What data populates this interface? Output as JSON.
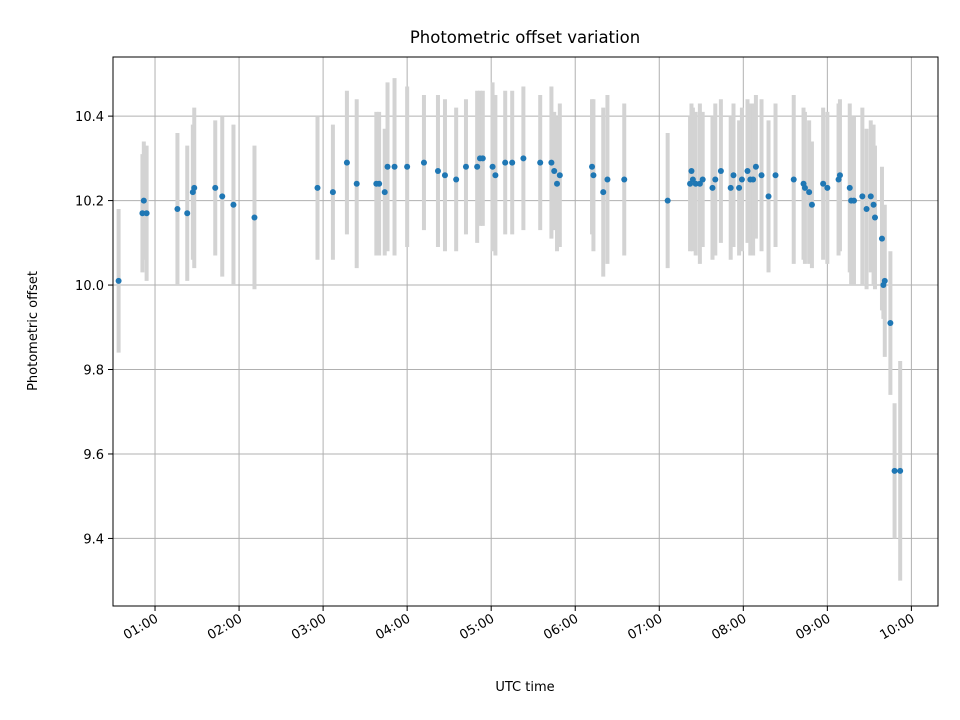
{
  "chart_data": {
    "type": "scatter",
    "title": "Photometric offset variation",
    "xlabel": "UTC time",
    "ylabel": "Photometric offset",
    "xlim": [
      "00:30",
      "10:19"
    ],
    "ylim": [
      9.24,
      10.54
    ],
    "xticks": [
      "01:00",
      "02:00",
      "03:00",
      "04:00",
      "05:00",
      "06:00",
      "07:00",
      "08:00",
      "09:00",
      "10:00"
    ],
    "yticks": [
      9.4,
      9.6,
      9.8,
      10.0,
      10.2,
      10.4
    ],
    "yticklabels": [
      "9.4",
      "9.6",
      "9.8",
      "10.0",
      "10.2",
      "10.4"
    ],
    "grid": true,
    "colors": {
      "points": "#1f77b4",
      "errorbars": "#d3d3d3",
      "grid": "#b0b0b0"
    },
    "series": [
      {
        "x": [
          "00:34",
          "00:51",
          "00:52",
          "00:54",
          "01:16",
          "01:23",
          "01:27",
          "01:28",
          "01:43",
          "01:48",
          "01:56",
          "02:11",
          "02:56",
          "03:07",
          "03:17",
          "03:24",
          "03:38",
          "03:40",
          "03:44",
          "03:46",
          "03:51",
          "04:00",
          "04:12",
          "04:22",
          "04:27",
          "04:35",
          "04:42",
          "04:50",
          "04:52",
          "04:54",
          "05:01",
          "05:03",
          "05:10",
          "05:15",
          "05:23",
          "05:35",
          "05:43",
          "05:45",
          "05:47",
          "05:49",
          "06:12",
          "06:13",
          "06:20",
          "06:23",
          "06:35",
          "07:06",
          "07:22",
          "07:23",
          "07:24",
          "07:26",
          "07:29",
          "07:31",
          "07:38",
          "07:40",
          "07:44",
          "07:51",
          "07:53",
          "07:57",
          "07:59",
          "08:03",
          "08:05",
          "08:07",
          "08:09",
          "08:13",
          "08:18",
          "08:23",
          "08:36",
          "08:43",
          "08:44",
          "08:47",
          "08:49",
          "08:57",
          "09:00",
          "09:08",
          "09:09",
          "09:16",
          "09:17",
          "09:19",
          "09:25",
          "09:28",
          "09:31",
          "09:33",
          "09:34",
          "09:39",
          "09:40",
          "09:41",
          "09:45",
          "09:48",
          "09:52"
        ],
        "y": [
          10.01,
          10.17,
          10.2,
          10.17,
          10.18,
          10.17,
          10.22,
          10.23,
          10.23,
          10.21,
          10.19,
          10.16,
          10.23,
          10.22,
          10.29,
          10.24,
          10.24,
          10.24,
          10.22,
          10.28,
          10.28,
          10.28,
          10.29,
          10.27,
          10.26,
          10.25,
          10.28,
          10.28,
          10.3,
          10.3,
          10.28,
          10.26,
          10.29,
          10.29,
          10.3,
          10.29,
          10.29,
          10.27,
          10.24,
          10.26,
          10.28,
          10.26,
          10.22,
          10.25,
          10.25,
          10.2,
          10.24,
          10.27,
          10.25,
          10.24,
          10.24,
          10.25,
          10.23,
          10.25,
          10.27,
          10.23,
          10.26,
          10.23,
          10.25,
          10.27,
          10.25,
          10.25,
          10.28,
          10.26,
          10.21,
          10.26,
          10.25,
          10.24,
          10.23,
          10.22,
          10.19,
          10.24,
          10.23,
          10.25,
          10.26,
          10.23,
          10.2,
          10.2,
          10.21,
          10.18,
          10.21,
          10.19,
          10.16,
          10.11,
          10.0,
          10.01,
          9.91,
          9.56,
          9.56
        ],
        "yerr": [
          0.17,
          0.14,
          0.14,
          0.16,
          0.18,
          0.16,
          0.16,
          0.19,
          0.16,
          0.19,
          0.19,
          0.17,
          0.17,
          0.16,
          0.17,
          0.2,
          0.17,
          0.17,
          0.15,
          0.2,
          0.21,
          0.19,
          0.16,
          0.18,
          0.18,
          0.17,
          0.16,
          0.18,
          0.16,
          0.16,
          0.2,
          0.19,
          0.17,
          0.17,
          0.17,
          0.16,
          0.18,
          0.14,
          0.16,
          0.17,
          0.16,
          0.18,
          0.2,
          0.2,
          0.18,
          0.16,
          0.16,
          0.16,
          0.17,
          0.17,
          0.19,
          0.16,
          0.17,
          0.18,
          0.17,
          0.17,
          0.17,
          0.16,
          0.17,
          0.17,
          0.18,
          0.18,
          0.17,
          0.18,
          0.18,
          0.17,
          0.2,
          0.18,
          0.18,
          0.17,
          0.15,
          0.18,
          0.18,
          0.18,
          0.18,
          0.2,
          0.2,
          0.2,
          0.21,
          0.19,
          0.18,
          0.19,
          0.17,
          0.17,
          0.08,
          0.18,
          0.17,
          0.16,
          0.26
        ]
      }
    ]
  }
}
